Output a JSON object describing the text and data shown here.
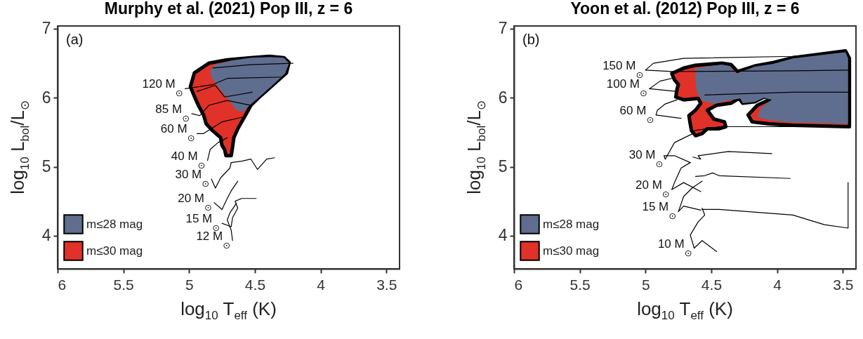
{
  "chart_data": [
    {
      "type": "line",
      "title": "Murphy et al. (2021) Pop III, z = 6",
      "xlabel": "log$_{10}$ T$_{eff}$ (K)",
      "ylabel": "log$_{10}$ L$_{bol}$/L$_{⊙}$",
      "xlim": [
        6,
        3.4
      ],
      "ylim": [
        3.52,
        7.04
      ],
      "xticks": [
        6,
        5.5,
        5,
        4.5,
        4,
        3.5
      ],
      "yticks": [
        4,
        5,
        6,
        7
      ],
      "legend": "bottom left",
      "annotations": [
        "(a)",
        {
          "text": "120 M$_{⊙}$",
          "x": 5.03,
          "y": 6.13
        },
        {
          "text": "85 M$_{⊙}$",
          "x": 4.98,
          "y": 5.77
        },
        {
          "text": "60 M$_{⊙}$",
          "x": 4.94,
          "y": 5.48
        },
        {
          "text": "40 M$_{⊙}$",
          "x": 4.86,
          "y": 5.09
        },
        {
          "text": "30 M$_{⊙}$",
          "x": 4.83,
          "y": 4.82
        },
        {
          "text": "20 M$_{⊙}$",
          "x": 4.81,
          "y": 4.48
        },
        {
          "text": "15 M$_{⊙}$",
          "x": 4.75,
          "y": 4.18
        },
        {
          "text": "12 M$_{⊙}$",
          "x": 4.67,
          "y": 3.93
        }
      ],
      "series": [
        {
          "name": "m≤28 mag",
          "type": "area",
          "color": "#5f6e8e",
          "x": [
            4.84,
            4.8,
            4.68,
            4.53,
            4.39,
            4.28,
            4.24,
            4.27,
            4.36,
            4.46,
            4.54,
            4.59,
            4.64,
            4.71,
            4.78,
            4.83
          ],
          "values": [
            6.4,
            6.48,
            6.54,
            6.58,
            6.59,
            6.58,
            6.5,
            6.35,
            6.19,
            6.02,
            5.89,
            5.79,
            5.82,
            5.99,
            6.16,
            6.29
          ]
        },
        {
          "name": "m≤30 mag",
          "type": "area",
          "color": "#e03228",
          "x": [
            4.96,
            4.85,
            4.71,
            4.53,
            4.39,
            4.28,
            4.24,
            4.26,
            4.36,
            4.46,
            4.53,
            4.57,
            4.6,
            4.63,
            4.66,
            4.67,
            4.68,
            4.72,
            4.73,
            4.75,
            4.76,
            4.82,
            4.87,
            4.89,
            4.93,
            4.96,
            4.99
          ],
          "values": [
            6.36,
            6.5,
            6.55,
            6.58,
            6.6,
            6.58,
            6.51,
            6.36,
            6.19,
            6.02,
            5.89,
            5.75,
            5.65,
            5.55,
            5.42,
            5.28,
            5.16,
            5.16,
            5.25,
            5.31,
            5.42,
            5.52,
            5.62,
            5.75,
            5.89,
            6.02,
            6.16
          ]
        },
        {
          "color": "#000000",
          "x": [
            4.82,
            4.53,
            4.21
          ],
          "values": [
            6.43,
            6.48,
            6.5
          ]
        },
        {
          "color": "#000000",
          "x": [
            5.03,
            4.82,
            4.71,
            4.28
          ],
          "values": [
            6.13,
            6.19,
            6.28,
            6.3
          ]
        },
        {
          "color": "#000000",
          "x": [
            4.94,
            4.8,
            4.73,
            4.52
          ],
          "values": [
            6.09,
            6.18,
            6.01,
            6.08
          ]
        },
        {
          "color": "#000000",
          "x": [
            4.98,
            4.92,
            4.85,
            4.71,
            4.53
          ],
          "values": [
            5.77,
            5.74,
            5.89,
            5.96,
            5.89
          ]
        },
        {
          "color": "#000000",
          "x": [
            4.94,
            4.89,
            4.75,
            4.59
          ],
          "values": [
            5.48,
            5.48,
            5.65,
            5.72
          ]
        },
        {
          "color": "#000000",
          "x": [
            4.86,
            4.84,
            4.78,
            4.71
          ],
          "values": [
            5.09,
            5.25,
            5.35,
            5.42
          ]
        },
        {
          "color": "#000000",
          "x": [
            4.83,
            4.8,
            4.76,
            4.69,
            4.68,
            4.6,
            4.53,
            4.48,
            4.41,
            4.35
          ],
          "values": [
            4.82,
            4.69,
            4.84,
            4.98,
            5.06,
            5.08,
            5.11,
            4.96,
            5.11,
            5.13
          ]
        },
        {
          "color": "#000000",
          "x": [
            4.81,
            4.75,
            4.71,
            4.68,
            4.63
          ],
          "values": [
            4.48,
            4.38,
            4.54,
            4.65,
            4.79
          ]
        },
        {
          "color": "#000000",
          "x": [
            4.75,
            4.68,
            4.67,
            4.63,
            4.65,
            4.6,
            4.49
          ],
          "values": [
            4.18,
            4.13,
            4.26,
            4.4,
            4.5,
            4.54,
            4.54
          ]
        },
        {
          "color": "#000000",
          "x": [
            4.67,
            4.68,
            4.71,
            4.69,
            4.64
          ],
          "values": [
            3.93,
            4.08,
            4.23,
            4.33,
            4.47
          ]
        }
      ]
    },
    {
      "type": "line",
      "title": "Yoon et al. (2012) Pop III, z = 6",
      "xlabel": "log$_{10}$ T$_{eff}$ (K)",
      "ylabel": "log$_{10}$ L$_{bol}$/L$_{⊙}$",
      "xlim": [
        6,
        3.4
      ],
      "ylim": [
        3.52,
        7.04
      ],
      "xticks": [
        6,
        5.5,
        5,
        4.5,
        4,
        3.5
      ],
      "yticks": [
        4,
        5,
        6,
        7
      ],
      "legend": "bottom left",
      "annotations": [
        "(b)",
        {
          "text": "150 M$_{⊙}$",
          "x": 5.0,
          "y": 6.4
        },
        {
          "text": "100 M$_{⊙}$",
          "x": 4.97,
          "y": 6.13
        },
        {
          "text": "60 M$_{⊙}$",
          "x": 4.92,
          "y": 5.75
        },
        {
          "text": "30 M$_{⊙}$",
          "x": 4.85,
          "y": 5.11
        },
        {
          "text": "20 M$_{⊙}$",
          "x": 4.8,
          "y": 4.67
        },
        {
          "text": "15 M$_{⊙}$",
          "x": 4.75,
          "y": 4.35
        },
        {
          "text": "10 M$_{⊙}$",
          "x": 4.63,
          "y": 3.82
        }
      ],
      "series": [
        {
          "name": "m≤28 mag",
          "type": "area",
          "color": "#5f6e8e",
          "x": [
            4.62,
            4.42,
            4.36,
            4.31,
            4.17,
            4.03,
            3.88,
            3.48,
            3.46,
            3.46,
            3.88,
            4.04,
            4.15,
            4.12,
            4.04,
            4.1,
            4.17,
            4.26,
            4.28,
            4.37,
            4.48,
            4.57,
            4.61,
            4.62
          ],
          "values": [
            6.43,
            6.48,
            6.46,
            6.35,
            6.45,
            6.49,
            6.57,
            6.66,
            6.57,
            5.62,
            5.64,
            5.67,
            5.72,
            5.86,
            5.97,
            6.0,
            5.94,
            5.92,
            5.99,
            5.96,
            5.91,
            5.96,
            6.08,
            6.23
          ]
        },
        {
          "name": "m≤30 mag",
          "type": "area",
          "color": "#e03228",
          "x": [
            4.8,
            4.71,
            4.62,
            4.42,
            4.35,
            4.3,
            4.17,
            4.03,
            3.88,
            3.48,
            3.45,
            3.45,
            3.88,
            4.06,
            4.19,
            4.22,
            4.15,
            4.04,
            4.1,
            4.17,
            4.26,
            4.29,
            4.35,
            4.46,
            4.53,
            4.48,
            4.4,
            4.39,
            4.44,
            4.53,
            4.57,
            4.62,
            4.65,
            4.66,
            4.67,
            4.62,
            4.58,
            4.6,
            4.71,
            4.77,
            4.76,
            4.75,
            4.78
          ],
          "values": [
            6.35,
            6.43,
            6.47,
            6.5,
            6.48,
            6.38,
            6.46,
            6.51,
            6.58,
            6.68,
            6.57,
            5.58,
            5.6,
            5.62,
            5.65,
            5.75,
            5.89,
            5.99,
            6.01,
            5.94,
            5.92,
            5.99,
            5.92,
            5.89,
            5.82,
            5.69,
            5.65,
            5.58,
            5.55,
            5.55,
            5.48,
            5.45,
            5.52,
            5.62,
            5.74,
            5.82,
            5.92,
            5.99,
            5.97,
            6.01,
            6.13,
            6.19,
            6.26
          ]
        },
        {
          "color": "#000000",
          "x": [
            5.0,
            4.8,
            3.88,
            3.45
          ],
          "values": [
            6.4,
            6.38,
            6.39,
            6.4
          ]
        },
        {
          "color": "#000000",
          "x": [
            5.0,
            4.94,
            4.71,
            3.88,
            3.47
          ],
          "values": [
            6.4,
            6.5,
            6.57,
            6.6,
            6.67
          ]
        },
        {
          "color": "#000000",
          "x": [
            4.97,
            4.76
          ],
          "values": [
            6.13,
            6.09
          ]
        },
        {
          "color": "#000000",
          "x": [
            4.97,
            4.89,
            4.78
          ],
          "values": [
            6.13,
            6.24,
            6.29
          ]
        },
        {
          "color": "#000000",
          "x": [
            4.55,
            3.88,
            3.46
          ],
          "values": [
            6.04,
            6.08,
            6.08
          ]
        },
        {
          "color": "#000000",
          "x": [
            4.92,
            4.73
          ],
          "values": [
            5.75,
            5.7
          ]
        },
        {
          "color": "#000000",
          "x": [
            4.92,
            4.91,
            4.85,
            4.76
          ],
          "values": [
            5.75,
            5.82,
            5.91,
            5.97
          ]
        },
        {
          "color": "#000000",
          "x": [
            4.64,
            4.44,
            3.88,
            3.46
          ],
          "values": [
            5.52,
            5.58,
            5.58,
            5.58
          ]
        },
        {
          "color": "#000000",
          "x": [
            4.85,
            4.78,
            4.64
          ],
          "values": [
            5.11,
            5.35,
            5.48
          ]
        },
        {
          "color": "#000000",
          "x": [
            4.85,
            4.86,
            4.78,
            4.66
          ],
          "values": [
            5.11,
            5.16,
            5.16,
            5.06
          ]
        },
        {
          "color": "#000000",
          "x": [
            4.64,
            4.58,
            4.6,
            4.37,
            4.04
          ],
          "values": [
            5.14,
            5.11,
            5.16,
            5.22,
            5.19
          ]
        },
        {
          "color": "#000000",
          "x": [
            4.8,
            4.78,
            4.73,
            4.66
          ],
          "values": [
            4.67,
            4.77,
            4.98,
            5.06
          ]
        },
        {
          "color": "#000000",
          "x": [
            4.8,
            4.71,
            4.58
          ],
          "values": [
            4.67,
            4.77,
            4.64
          ]
        },
        {
          "color": "#000000",
          "x": [
            4.62,
            4.55,
            4.49,
            4.44,
            3.9
          ],
          "values": [
            4.86,
            4.87,
            4.91,
            4.87,
            4.83
          ]
        },
        {
          "color": "#000000",
          "x": [
            4.75,
            4.71,
            4.64,
            4.57
          ],
          "values": [
            4.35,
            4.57,
            4.7,
            4.79
          ]
        },
        {
          "color": "#000000",
          "x": [
            4.75,
            4.71,
            4.58
          ],
          "values": [
            4.35,
            4.43,
            4.37
          ]
        },
        {
          "color": "#000000",
          "x": [
            4.57,
            4.44,
            3.88,
            3.64,
            3.46,
            3.46
          ],
          "values": [
            4.38,
            4.38,
            4.3,
            4.16,
            4.11,
            4.77
          ]
        },
        {
          "color": "#000000",
          "x": [
            4.63,
            4.66,
            4.6,
            4.55,
            4.57
          ],
          "values": [
            3.82,
            4.01,
            4.2,
            4.3,
            4.4
          ]
        },
        {
          "color": "#000000",
          "x": [
            4.63,
            4.57,
            4.46
          ],
          "values": [
            3.82,
            3.93,
            3.77
          ]
        }
      ]
    }
  ]
}
